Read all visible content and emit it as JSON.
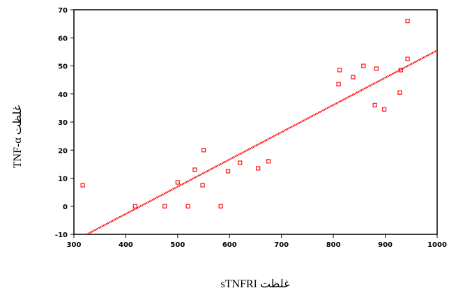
{
  "chart_data": {
    "type": "scatter",
    "title": "",
    "xlabel": "غلظت sTNFRI",
    "ylabel": "غلظت TNF-α",
    "xlim": [
      300,
      1000
    ],
    "ylim": [
      -10,
      70
    ],
    "xticks": [
      300,
      400,
      500,
      600,
      700,
      800,
      900,
      1000
    ],
    "xtick_labels": [
      "300",
      "400",
      "500",
      "600",
      "700",
      "800",
      "900",
      "1000"
    ],
    "yticks": [
      -10,
      0,
      10,
      20,
      30,
      40,
      50,
      60,
      70
    ],
    "ytick_labels": [
      "-10",
      "0",
      "10",
      "20",
      "30",
      "40",
      "50",
      "60",
      "70"
    ],
    "grid": false,
    "legend": "none",
    "colors": {
      "points": "#ff2020",
      "fit": "#ff0000",
      "axes": "#000000"
    },
    "series": [
      {
        "kind": "points",
        "points": [
          [
            317,
            7.5
          ],
          [
            418,
            0
          ],
          [
            475,
            0
          ],
          [
            500,
            8.5
          ],
          [
            520,
            0
          ],
          [
            533,
            13
          ],
          [
            548,
            7.5
          ],
          [
            550,
            20
          ],
          [
            583,
            0
          ],
          [
            597,
            12.5
          ],
          [
            620,
            15.5
          ],
          [
            655,
            13.5
          ],
          [
            675,
            16
          ],
          [
            810,
            43.5
          ],
          [
            812,
            48.5
          ],
          [
            838,
            46
          ],
          [
            858,
            50
          ],
          [
            880,
            36
          ],
          [
            883,
            49
          ],
          [
            898,
            34.5
          ],
          [
            928,
            40.5
          ],
          [
            930,
            48.5
          ],
          [
            943,
            52.5
          ],
          [
            943,
            66
          ]
        ]
      },
      {
        "kind": "fit-line",
        "from": [
          325,
          -10
        ],
        "to": [
          1000,
          55.5
        ]
      }
    ]
  }
}
